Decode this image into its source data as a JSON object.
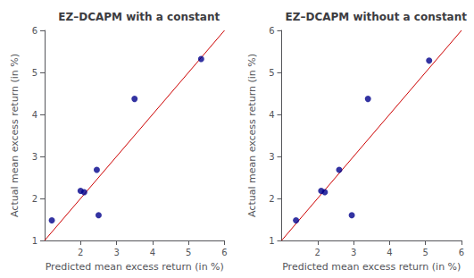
{
  "chart_data": [
    {
      "type": "scatter",
      "title": "EZ–DCAPM with a constant",
      "xlabel": "Predicted mean excess return (in %)",
      "ylabel": "Actual mean excess return (in %)",
      "xlim": [
        1,
        6
      ],
      "ylim": [
        1,
        6
      ],
      "xticks": [
        2,
        3,
        4,
        5,
        6
      ],
      "yticks": [
        1,
        2,
        3,
        4,
        5,
        6
      ],
      "grid": false,
      "series": [
        {
          "type": "line",
          "color": "#CC0000",
          "x": [
            1,
            6
          ],
          "values": [
            1,
            6
          ]
        },
        {
          "type": "scatter",
          "color": "#00008B",
          "x": [
            1.2,
            2.0,
            2.1,
            2.45,
            2.5,
            3.5,
            5.35
          ],
          "values": [
            1.48,
            2.18,
            2.15,
            2.68,
            1.6,
            4.37,
            5.32
          ]
        }
      ]
    },
    {
      "type": "scatter",
      "title": "EZ–DCAPM without a constant",
      "xlabel": "Predicted mean excess return (in %)",
      "ylabel": "Actual mean excess return (in %)",
      "xlim": [
        1,
        6
      ],
      "ylim": [
        1,
        6
      ],
      "xticks": [
        2,
        3,
        4,
        5,
        6
      ],
      "yticks": [
        1,
        2,
        3,
        4,
        5,
        6
      ],
      "grid": false,
      "series": [
        {
          "type": "line",
          "color": "#CC0000",
          "x": [
            1,
            6
          ],
          "values": [
            1,
            6
          ]
        },
        {
          "type": "scatter",
          "color": "#00008B",
          "x": [
            1.4,
            2.1,
            2.2,
            2.6,
            2.95,
            3.4,
            5.1
          ],
          "values": [
            1.48,
            2.18,
            2.15,
            2.68,
            1.6,
            4.37,
            5.28
          ]
        }
      ]
    }
  ]
}
